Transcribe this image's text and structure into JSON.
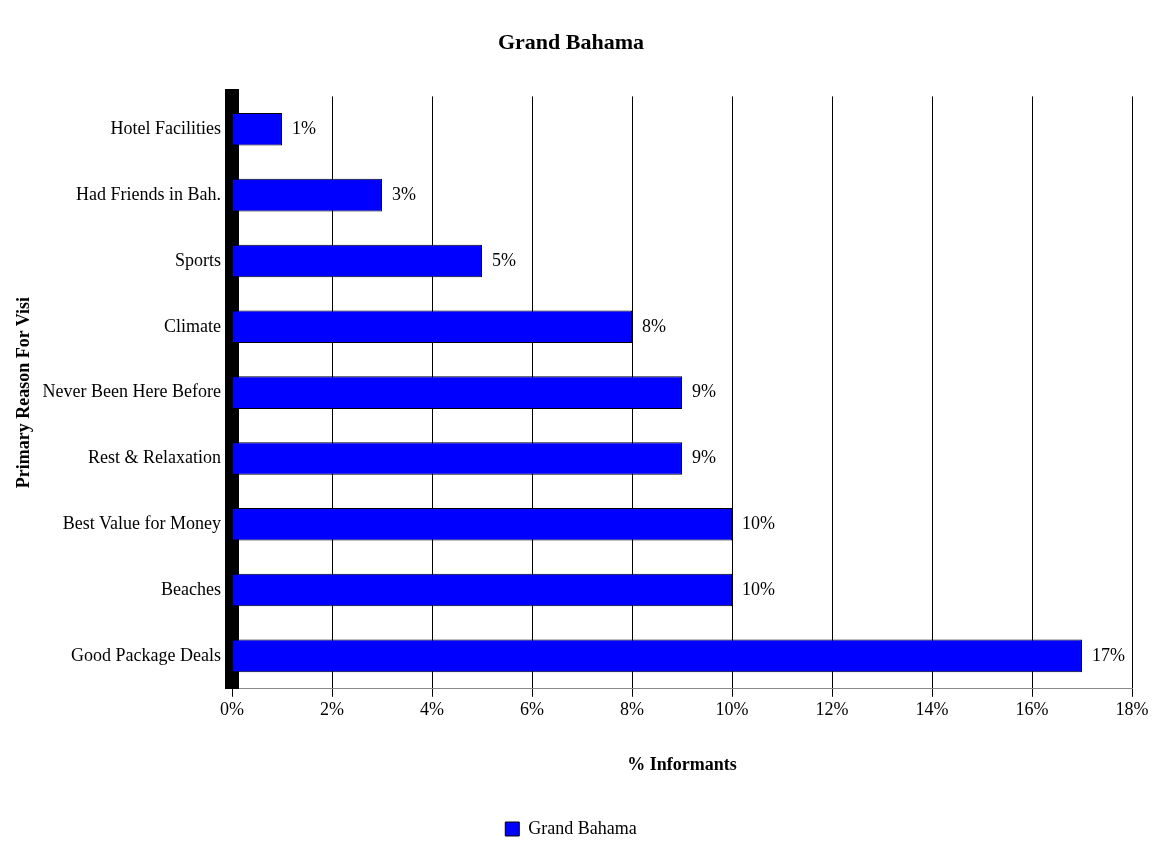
{
  "chart_data": {
    "type": "bar",
    "orientation": "horizontal",
    "title": "Grand Bahama",
    "xlabel": "% Informants",
    "ylabel": "Primary Reason For Visi",
    "categories": [
      "Hotel Facilities",
      "Had Friends in Bah.",
      "Sports",
      "Climate",
      "Never Been Here Before",
      "Rest & Relaxation",
      "Best Value for Money",
      "Beaches",
      "Good Package Deals"
    ],
    "series": [
      {
        "name": "Grand Bahama",
        "color": "#0000ff",
        "values": [
          1,
          3,
          5,
          8,
          9,
          9,
          10,
          10,
          17
        ],
        "value_labels": [
          "1%",
          "3%",
          "5%",
          "8%",
          "9%",
          "9%",
          "10%",
          "10%",
          "17%"
        ]
      }
    ],
    "xlim": [
      0,
      18
    ],
    "xticks": [
      {
        "value": 0,
        "label": "0%"
      },
      {
        "value": 2,
        "label": "2%"
      },
      {
        "value": 4,
        "label": "4%"
      },
      {
        "value": 6,
        "label": "6%"
      },
      {
        "value": 8,
        "label": "8%"
      },
      {
        "value": 10,
        "label": "10%"
      },
      {
        "value": 12,
        "label": "12%"
      },
      {
        "value": 14,
        "label": "14%"
      },
      {
        "value": 16,
        "label": "16%"
      },
      {
        "value": 18,
        "label": "18%"
      }
    ],
    "grid": "x",
    "legend": "bottom"
  }
}
